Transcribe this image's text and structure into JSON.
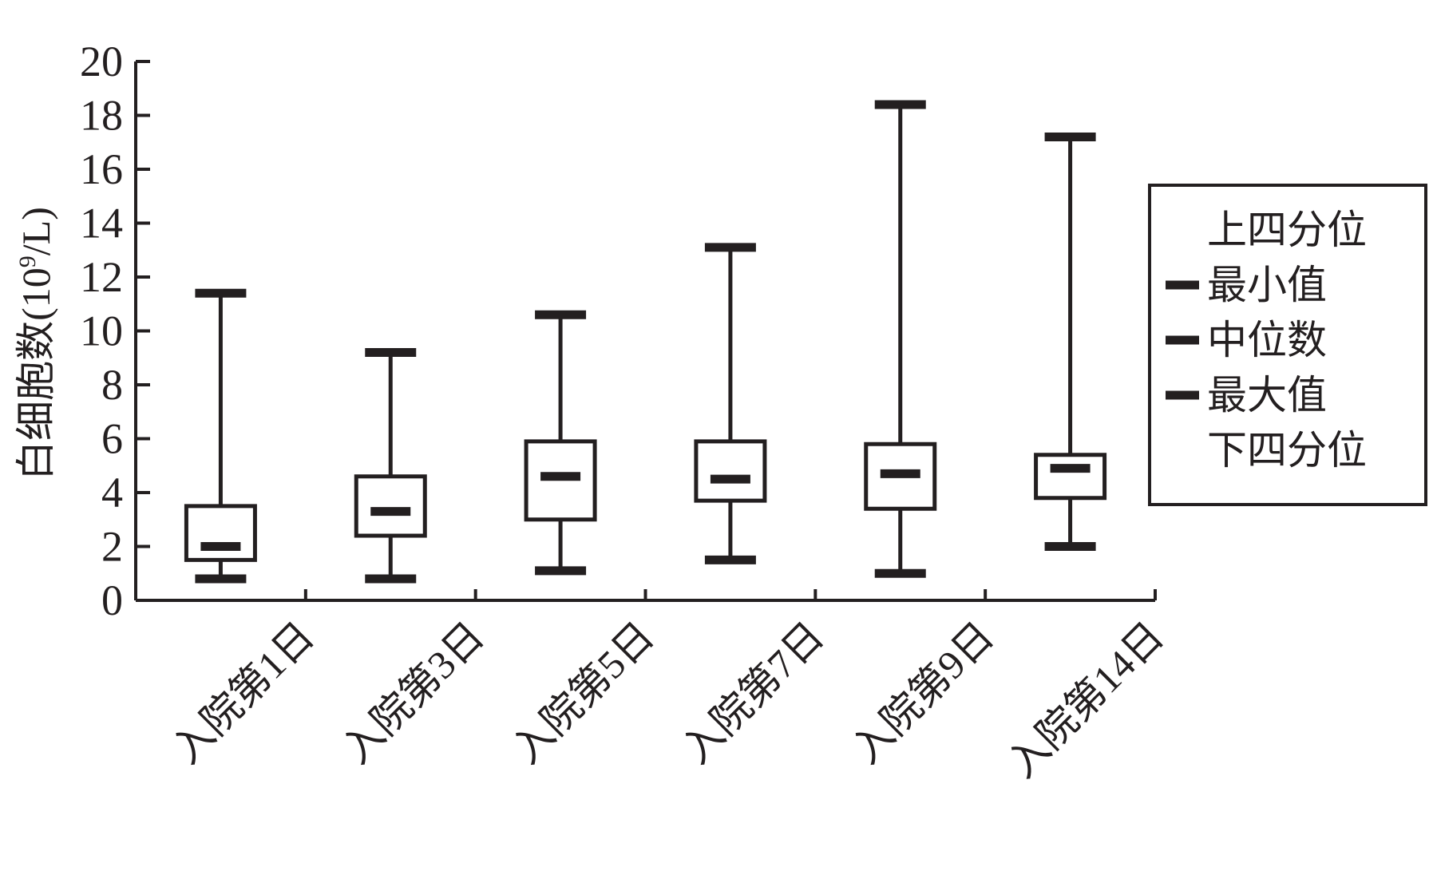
{
  "chart_data": {
    "type": "box",
    "ylabel_main": "白细胞数(10",
    "ylabel_sup": "9",
    "ylabel_end": "/L)",
    "ylim": [
      0,
      20
    ],
    "yticks": [
      0,
      2,
      4,
      6,
      8,
      10,
      12,
      14,
      16,
      18,
      20
    ],
    "categories": [
      "入院第1日",
      "入院第3日",
      "入院第5日",
      "入院第7日",
      "入院第9日",
      "入院第14日"
    ],
    "boxes": [
      {
        "min": 0.8,
        "q1": 1.5,
        "median": 2.0,
        "q3": 3.5,
        "max": 11.4
      },
      {
        "min": 0.8,
        "q1": 2.4,
        "median": 3.3,
        "q3": 4.6,
        "max": 9.2
      },
      {
        "min": 1.1,
        "q1": 3.0,
        "median": 4.6,
        "q3": 5.9,
        "max": 10.6
      },
      {
        "min": 1.5,
        "q1": 3.7,
        "median": 4.5,
        "q3": 5.9,
        "max": 13.1
      },
      {
        "min": 1.0,
        "q1": 3.4,
        "median": 4.7,
        "q3": 5.8,
        "max": 18.4
      },
      {
        "min": 2.0,
        "q1": 3.8,
        "median": 4.9,
        "q3": 5.4,
        "max": 17.2
      }
    ],
    "legend": {
      "position": "right",
      "items": [
        {
          "marker": "none",
          "label": "上四分位"
        },
        {
          "marker": "bar",
          "label": "最小值"
        },
        {
          "marker": "bar",
          "label": "中位数"
        },
        {
          "marker": "bar",
          "label": "最大值"
        },
        {
          "marker": "none",
          "label": "下四分位"
        }
      ]
    },
    "colors": {
      "ink": "#231f20",
      "background": "#ffffff"
    }
  }
}
